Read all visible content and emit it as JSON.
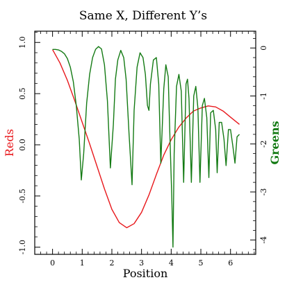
{
  "chart_data": {
    "type": "line",
    "title": "Same X, Different Y’s",
    "xlabel": "Position",
    "ylabel_left": "Reds",
    "ylabel_right": "Greens",
    "xlim": [
      -0.6,
      6.85
    ],
    "ylim_left": [
      -1.07,
      1.11
    ],
    "ylim_right": [
      -4.3,
      0.35
    ],
    "x_ticks": [
      0,
      1,
      2,
      3,
      4,
      5,
      6
    ],
    "x_tick_labels": [
      "0",
      "1",
      "2",
      "3",
      "4",
      "5",
      "6"
    ],
    "y_left_ticks": [
      1.0,
      0.5,
      0.0,
      -0.5,
      -1.0
    ],
    "y_left_tick_labels": [
      "1.0",
      "0.5",
      "0.0",
      "-0.5",
      "-1.0"
    ],
    "y_right_ticks": [
      0,
      -1,
      -2,
      -3,
      -4
    ],
    "y_right_tick_labels": [
      "0",
      "-1",
      "-2",
      "-3",
      "-4"
    ],
    "grid": false,
    "colors": {
      "red": "#e8181c",
      "green": "#137a13",
      "axis": "#000000"
    },
    "series": [
      {
        "axis": "left",
        "color": "#e8181c",
        "x": [
          0,
          0.25,
          0.5,
          0.75,
          1.0,
          1.25,
          1.5,
          1.75,
          2.0,
          2.25,
          2.5,
          2.75,
          3.0,
          3.25,
          3.5,
          3.75,
          4.0,
          4.25,
          4.5,
          4.75,
          5.0,
          5.25,
          5.5,
          5.75,
          6.0,
          6.3
        ],
        "y": [
          0.93,
          0.8,
          0.63,
          0.43,
          0.22,
          0.01,
          -0.21,
          -0.43,
          -0.63,
          -0.76,
          -0.81,
          -0.77,
          -0.66,
          -0.49,
          -0.29,
          -0.1,
          0.05,
          0.17,
          0.26,
          0.33,
          0.36,
          0.38,
          0.37,
          0.33,
          0.27,
          0.2
        ]
      },
      {
        "axis": "right",
        "color": "#137a13",
        "x": [
          0,
          0.1,
          0.2,
          0.3,
          0.4,
          0.5,
          0.6,
          0.7,
          0.8,
          0.9,
          0.97,
          1.05,
          1.15,
          1.25,
          1.35,
          1.45,
          1.55,
          1.65,
          1.75,
          1.85,
          1.95,
          2.05,
          2.12,
          2.2,
          2.3,
          2.4,
          2.48,
          2.58,
          2.68,
          2.75,
          2.85,
          2.95,
          3.05,
          3.13,
          3.2,
          3.25,
          3.3,
          3.4,
          3.5,
          3.58,
          3.65,
          3.75,
          3.82,
          3.9,
          3.95,
          4.02,
          4.06,
          4.1,
          4.18,
          4.26,
          4.34,
          4.42,
          4.5,
          4.55,
          4.6,
          4.68,
          4.76,
          4.83,
          4.9,
          4.97,
          5.05,
          5.12,
          5.2,
          5.27,
          5.33,
          5.42,
          5.5,
          5.55,
          5.62,
          5.7,
          5.78,
          5.85,
          5.93,
          6.0,
          6.08,
          6.15,
          6.22,
          6.3
        ],
        "y": [
          -0.03,
          -0.03,
          -0.04,
          -0.07,
          -0.12,
          -0.22,
          -0.4,
          -0.7,
          -1.2,
          -1.9,
          -2.75,
          -2.2,
          -1.15,
          -0.55,
          -0.2,
          -0.03,
          0.03,
          -0.02,
          -0.35,
          -1.1,
          -2.5,
          -1.6,
          -0.65,
          -0.25,
          -0.05,
          -0.2,
          -0.65,
          -1.8,
          -2.85,
          -1.3,
          -0.4,
          -0.1,
          -0.2,
          -0.55,
          -1.2,
          -1.3,
          -0.75,
          -0.25,
          -0.2,
          -0.75,
          -2.4,
          -0.85,
          -0.35,
          -0.6,
          -1.7,
          -3.1,
          -4.15,
          -2.2,
          -0.8,
          -0.55,
          -0.9,
          -2.8,
          -0.75,
          -0.65,
          -1.05,
          -2.8,
          -1.0,
          -0.8,
          -1.25,
          -2.8,
          -1.2,
          -1.05,
          -1.45,
          -2.7,
          -1.35,
          -1.3,
          -1.7,
          -2.6,
          -1.55,
          -1.55,
          -1.9,
          -2.45,
          -1.7,
          -1.7,
          -2.05,
          -2.4,
          -1.85,
          -1.8
        ]
      }
    ]
  }
}
